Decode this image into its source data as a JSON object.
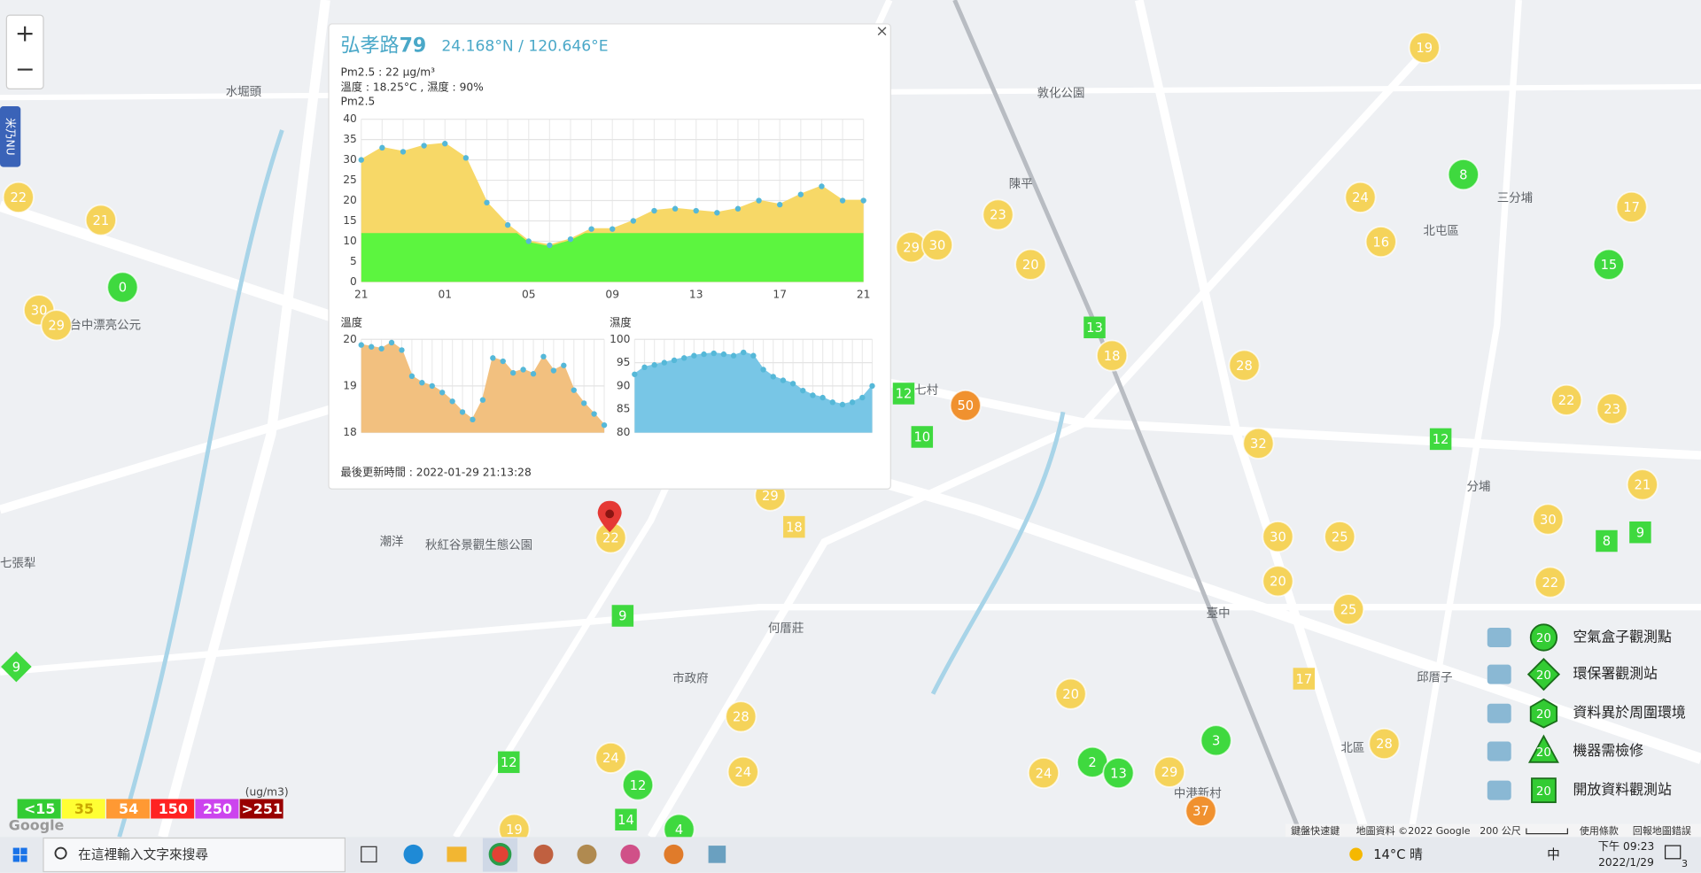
{
  "app": {
    "zoom_in": "+",
    "zoom_out": "−",
    "side_tab": "米乃NU"
  },
  "popup": {
    "title": "弘孝路",
    "title_number": "79",
    "coords": "24.168°N / 120.646°E",
    "pm25": "Pm2.5 : 22 μg/m³",
    "weather": "溫度 : 18.25°C , 濕度 : 90%",
    "close": "×",
    "updated": "最後更新時間 : 2022-01-29 21:13:28"
  },
  "chart_data": [
    {
      "type": "area",
      "title": "Pm2.5",
      "categories": [
        "21",
        null,
        null,
        null,
        "01",
        null,
        null,
        null,
        "05",
        null,
        null,
        null,
        "09",
        null,
        null,
        null,
        "13",
        null,
        null,
        null,
        "17",
        null,
        null,
        null,
        "21"
      ],
      "values": [
        30,
        33,
        32,
        33.5,
        34,
        30.5,
        19.5,
        14,
        10,
        9,
        10.5,
        13,
        13,
        15,
        17.5,
        18,
        17.5,
        17,
        18,
        20,
        19,
        21.5,
        23.5,
        20,
        20
      ],
      "ylim": [
        0,
        40
      ],
      "yticks": [
        0,
        5,
        10,
        15,
        20,
        25,
        30,
        35,
        40
      ],
      "color": "#f7d867",
      "line_color": "#55b8d8",
      "fill_threshold": 12,
      "threshold_color": "#5cf53f",
      "grid": true
    },
    {
      "type": "area",
      "title": "溫度",
      "values": [
        19.88,
        19.84,
        19.8,
        19.93,
        19.77,
        19.21,
        19.07,
        19,
        18.86,
        18.67,
        18.44,
        18.28,
        18.7,
        19.6,
        19.53,
        19.28,
        19.35,
        19.26,
        19.63,
        19.33,
        19.44,
        18.91,
        18.63,
        18.4,
        18.16
      ],
      "ylim": [
        18,
        20
      ],
      "yticks": [
        18,
        19,
        20
      ],
      "color": "#f2c07f",
      "line_color": "#55b8d8",
      "grid": true
    },
    {
      "type": "area",
      "title": "濕度",
      "values": [
        92.5,
        94,
        94.5,
        95,
        95.5,
        96,
        96.5,
        96.8,
        97,
        96.8,
        96.5,
        97.2,
        96.5,
        93.5,
        92,
        91.2,
        90.5,
        89,
        88,
        87.5,
        86.5,
        86,
        86.5,
        87.5,
        90
      ],
      "ylim": [
        80,
        100
      ],
      "yticks": [
        80,
        85,
        90,
        95,
        100
      ],
      "color": "#78c6e6",
      "line_color": "#55b8d8",
      "grid": true
    }
  ],
  "markers": [
    {
      "value": 19,
      "shape": "circle",
      "color": "#f5d35a"
    },
    {
      "value": 22,
      "shape": "circle",
      "color": "#f5d35a"
    },
    {
      "value": 21,
      "shape": "circle",
      "color": "#f5d35a"
    },
    {
      "value": 30,
      "shape": "circle",
      "color": "#f5d35a"
    },
    {
      "value": 29,
      "shape": "circle",
      "color": "#f5d35a"
    },
    {
      "value": 24,
      "shape": "circle",
      "color": "#f5d35a"
    },
    {
      "value": 17,
      "shape": "circle",
      "color": "#f5d35a"
    },
    {
      "value": 16,
      "shape": "circle",
      "color": "#f5d35a"
    },
    {
      "value": 23,
      "shape": "circle",
      "color": "#f5d35a"
    },
    {
      "value": 29,
      "shape": "circle",
      "color": "#f5d35a"
    },
    {
      "value": 30,
      "shape": "circle",
      "color": "#f5d35a"
    },
    {
      "value": 20,
      "shape": "circle",
      "color": "#f5d35a"
    },
    {
      "value": 18,
      "shape": "circle",
      "color": "#f5d35a"
    },
    {
      "value": 28,
      "shape": "circle",
      "color": "#f5d35a"
    },
    {
      "value": 32,
      "shape": "circle",
      "color": "#f5d35a"
    },
    {
      "value": 22,
      "shape": "circle",
      "color": "#f5d35a"
    },
    {
      "value": 23,
      "shape": "circle",
      "color": "#f5d35a"
    },
    {
      "value": 21,
      "shape": "circle",
      "color": "#f5d35a"
    },
    {
      "value": 30,
      "shape": "circle",
      "color": "#f5d35a"
    },
    {
      "value": 22,
      "shape": "circle",
      "color": "#f5d35a"
    },
    {
      "value": 30,
      "shape": "circle",
      "color": "#f5d35a"
    },
    {
      "value": 25,
      "shape": "circle",
      "color": "#f5d35a"
    },
    {
      "value": 20,
      "shape": "circle",
      "color": "#f5d35a"
    },
    {
      "value": 25,
      "shape": "circle",
      "color": "#f5d35a"
    },
    {
      "value": 20,
      "shape": "circle",
      "color": "#f5d35a"
    },
    {
      "value": 28,
      "shape": "circle",
      "color": "#f5d35a"
    },
    {
      "value": 24,
      "shape": "circle",
      "color": "#f5d35a"
    },
    {
      "value": 24,
      "shape": "circle",
      "color": "#f5d35a"
    },
    {
      "value": 24,
      "shape": "circle",
      "color": "#f5d35a"
    },
    {
      "value": 29,
      "shape": "circle",
      "color": "#f5d35a"
    },
    {
      "value": 28,
      "shape": "circle",
      "color": "#f5d35a"
    },
    {
      "value": 19,
      "shape": "circle",
      "color": "#f5d35a"
    },
    {
      "value": 29,
      "shape": "circle",
      "color": "#f5d35a"
    },
    {
      "value": 22,
      "shape": "circle",
      "color": "#f5d35a"
    },
    {
      "value": 0,
      "shape": "circle",
      "color": "#3fd93f"
    },
    {
      "value": 8,
      "shape": "circle",
      "color": "#3fd93f"
    },
    {
      "value": 15,
      "shape": "circle",
      "color": "#3fd93f"
    },
    {
      "value": 3,
      "shape": "circle",
      "color": "#3fd93f"
    },
    {
      "value": 2,
      "shape": "circle",
      "color": "#3fd93f"
    },
    {
      "value": 13,
      "shape": "circle",
      "color": "#3fd93f"
    },
    {
      "value": 12,
      "shape": "circle",
      "color": "#3fd93f"
    },
    {
      "value": 4,
      "shape": "circle",
      "color": "#3fd93f"
    },
    {
      "value": 50,
      "shape": "circle",
      "color": "#f0912f"
    },
    {
      "value": 37,
      "shape": "circle",
      "color": "#f0912f"
    },
    {
      "value": 13,
      "shape": "square",
      "color": "#3fd93f"
    },
    {
      "value": 12,
      "shape": "square",
      "color": "#3fd93f"
    },
    {
      "value": 10,
      "shape": "square",
      "color": "#3fd93f"
    },
    {
      "value": 12,
      "shape": "square",
      "color": "#3fd93f"
    },
    {
      "value": 8,
      "shape": "square",
      "color": "#3fd93f"
    },
    {
      "value": 9,
      "shape": "square",
      "color": "#3fd93f"
    },
    {
      "value": 9,
      "shape": "square",
      "color": "#3fd93f"
    },
    {
      "value": 12,
      "shape": "square",
      "color": "#3fd93f"
    },
    {
      "value": 14,
      "shape": "square",
      "color": "#3fd93f"
    },
    {
      "value": 18,
      "shape": "square",
      "color": "#f5d35a"
    },
    {
      "value": 17,
      "shape": "square",
      "color": "#f5d35a"
    },
    {
      "value": 9,
      "shape": "diamond",
      "color": "#3fd93f"
    }
  ],
  "places": [
    "水堀頭",
    "潮洋",
    "秋紅谷景觀生態公園",
    "何厝莊",
    "臺中",
    "北屯區",
    "三分埔",
    "陳平",
    "邱厝子",
    "七村",
    "分埔",
    "中港新村",
    "北區",
    "七張犁",
    "市政府",
    "敦化公園",
    "台中漂亮公元"
  ],
  "aqi_legend": {
    "unit": "(ug/m3)",
    "levels": [
      {
        "label": "<15",
        "color": "#33cc33"
      },
      {
        "label": "35",
        "color": "#ffff33"
      },
      {
        "label": "54",
        "color": "#ff9933"
      },
      {
        "label": "150",
        "color": "#ff2222"
      },
      {
        "label": "250",
        "color": "#cc44ee"
      },
      {
        "label": ">251",
        "color": "#990000"
      }
    ]
  },
  "station_legend": [
    {
      "label": "空氣盒子觀測點",
      "sample": "20",
      "shape": "circle"
    },
    {
      "label": "環保署觀測站",
      "sample": "20",
      "shape": "diamond"
    },
    {
      "label": "資料異於周圍環境",
      "sample": "20",
      "shape": "hexagon"
    },
    {
      "label": "機器需檢修",
      "sample": "20",
      "shape": "triangle"
    },
    {
      "label": "開放資料觀測站",
      "sample": "20",
      "shape": "square"
    }
  ],
  "map_footer": {
    "logo": "Google",
    "shortcuts": "鍵盤快速鍵",
    "data": "地圖資料 ©2022 Google",
    "scale": "200 公尺",
    "terms": "使用條款",
    "report": "回報地圖錯誤"
  },
  "taskbar": {
    "search": "在這裡輸入文字來搜尋",
    "weather": "14°C 晴",
    "ime": "中",
    "time": "下午 09:23",
    "date": "2022/1/29",
    "notifications": "3"
  }
}
